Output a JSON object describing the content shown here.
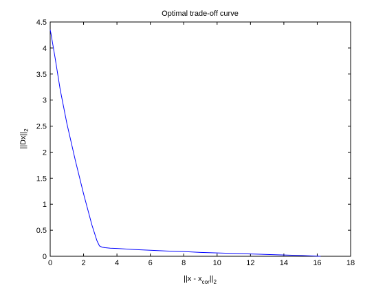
{
  "chart_data": {
    "type": "line",
    "title": "Optimal trade-off curve",
    "xlabel": {
      "main_pre": "||x - x",
      "sub1": "cor",
      "main_post": "||",
      "sub2": "2"
    },
    "ylabel": {
      "main": "||Dx||",
      "sub": "2"
    },
    "xlim": [
      0,
      18
    ],
    "ylim": [
      0,
      4.5
    ],
    "xticks": [
      0,
      2,
      4,
      6,
      8,
      10,
      12,
      14,
      16,
      18
    ],
    "xtick_labels": [
      "0",
      "2",
      "4",
      "6",
      "8",
      "10",
      "12",
      "14",
      "16",
      "18"
    ],
    "yticks": [
      0,
      0.5,
      1,
      1.5,
      2,
      2.5,
      3,
      3.5,
      4,
      4.5
    ],
    "ytick_labels": [
      "0",
      "0.5",
      "1",
      "1.5",
      "2",
      "2.5",
      "3",
      "3.5",
      "4",
      "4.5"
    ],
    "grid": false,
    "line_color": "#0000ff",
    "series": [
      {
        "x": [
          0.0,
          0.05,
          0.3,
          0.6,
          1.0,
          1.5,
          2.0,
          2.5,
          2.8,
          2.95,
          3.1,
          3.3,
          3.6,
          4.0,
          5.0,
          6.0,
          7.0,
          8.0,
          9.0,
          10.0,
          11.0,
          12.0,
          13.0,
          14.0,
          15.0,
          15.8,
          16.2
        ],
        "y": [
          4.35,
          4.27,
          3.8,
          3.2,
          2.55,
          1.85,
          1.2,
          0.6,
          0.3,
          0.2,
          0.175,
          0.165,
          0.155,
          0.15,
          0.13,
          0.115,
          0.1,
          0.09,
          0.075,
          0.065,
          0.055,
          0.045,
          0.035,
          0.025,
          0.015,
          0.005,
          0.0
        ]
      }
    ]
  }
}
